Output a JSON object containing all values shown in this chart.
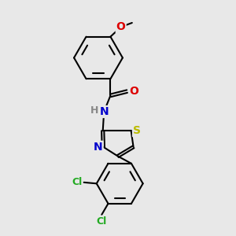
{
  "background_color": "#e8e8e8",
  "bond_color": "#000000",
  "bond_width": 1.5,
  "atoms": {
    "S": {
      "color": "#bbbb00",
      "fontsize": 10
    },
    "N": {
      "color": "#0000cc",
      "fontsize": 10
    },
    "O": {
      "color": "#dd0000",
      "fontsize": 10
    },
    "Cl": {
      "color": "#22aa22",
      "fontsize": 9
    },
    "H": {
      "color": "#888888",
      "fontsize": 10
    }
  },
  "figsize": [
    3.0,
    3.0
  ],
  "dpi": 100
}
